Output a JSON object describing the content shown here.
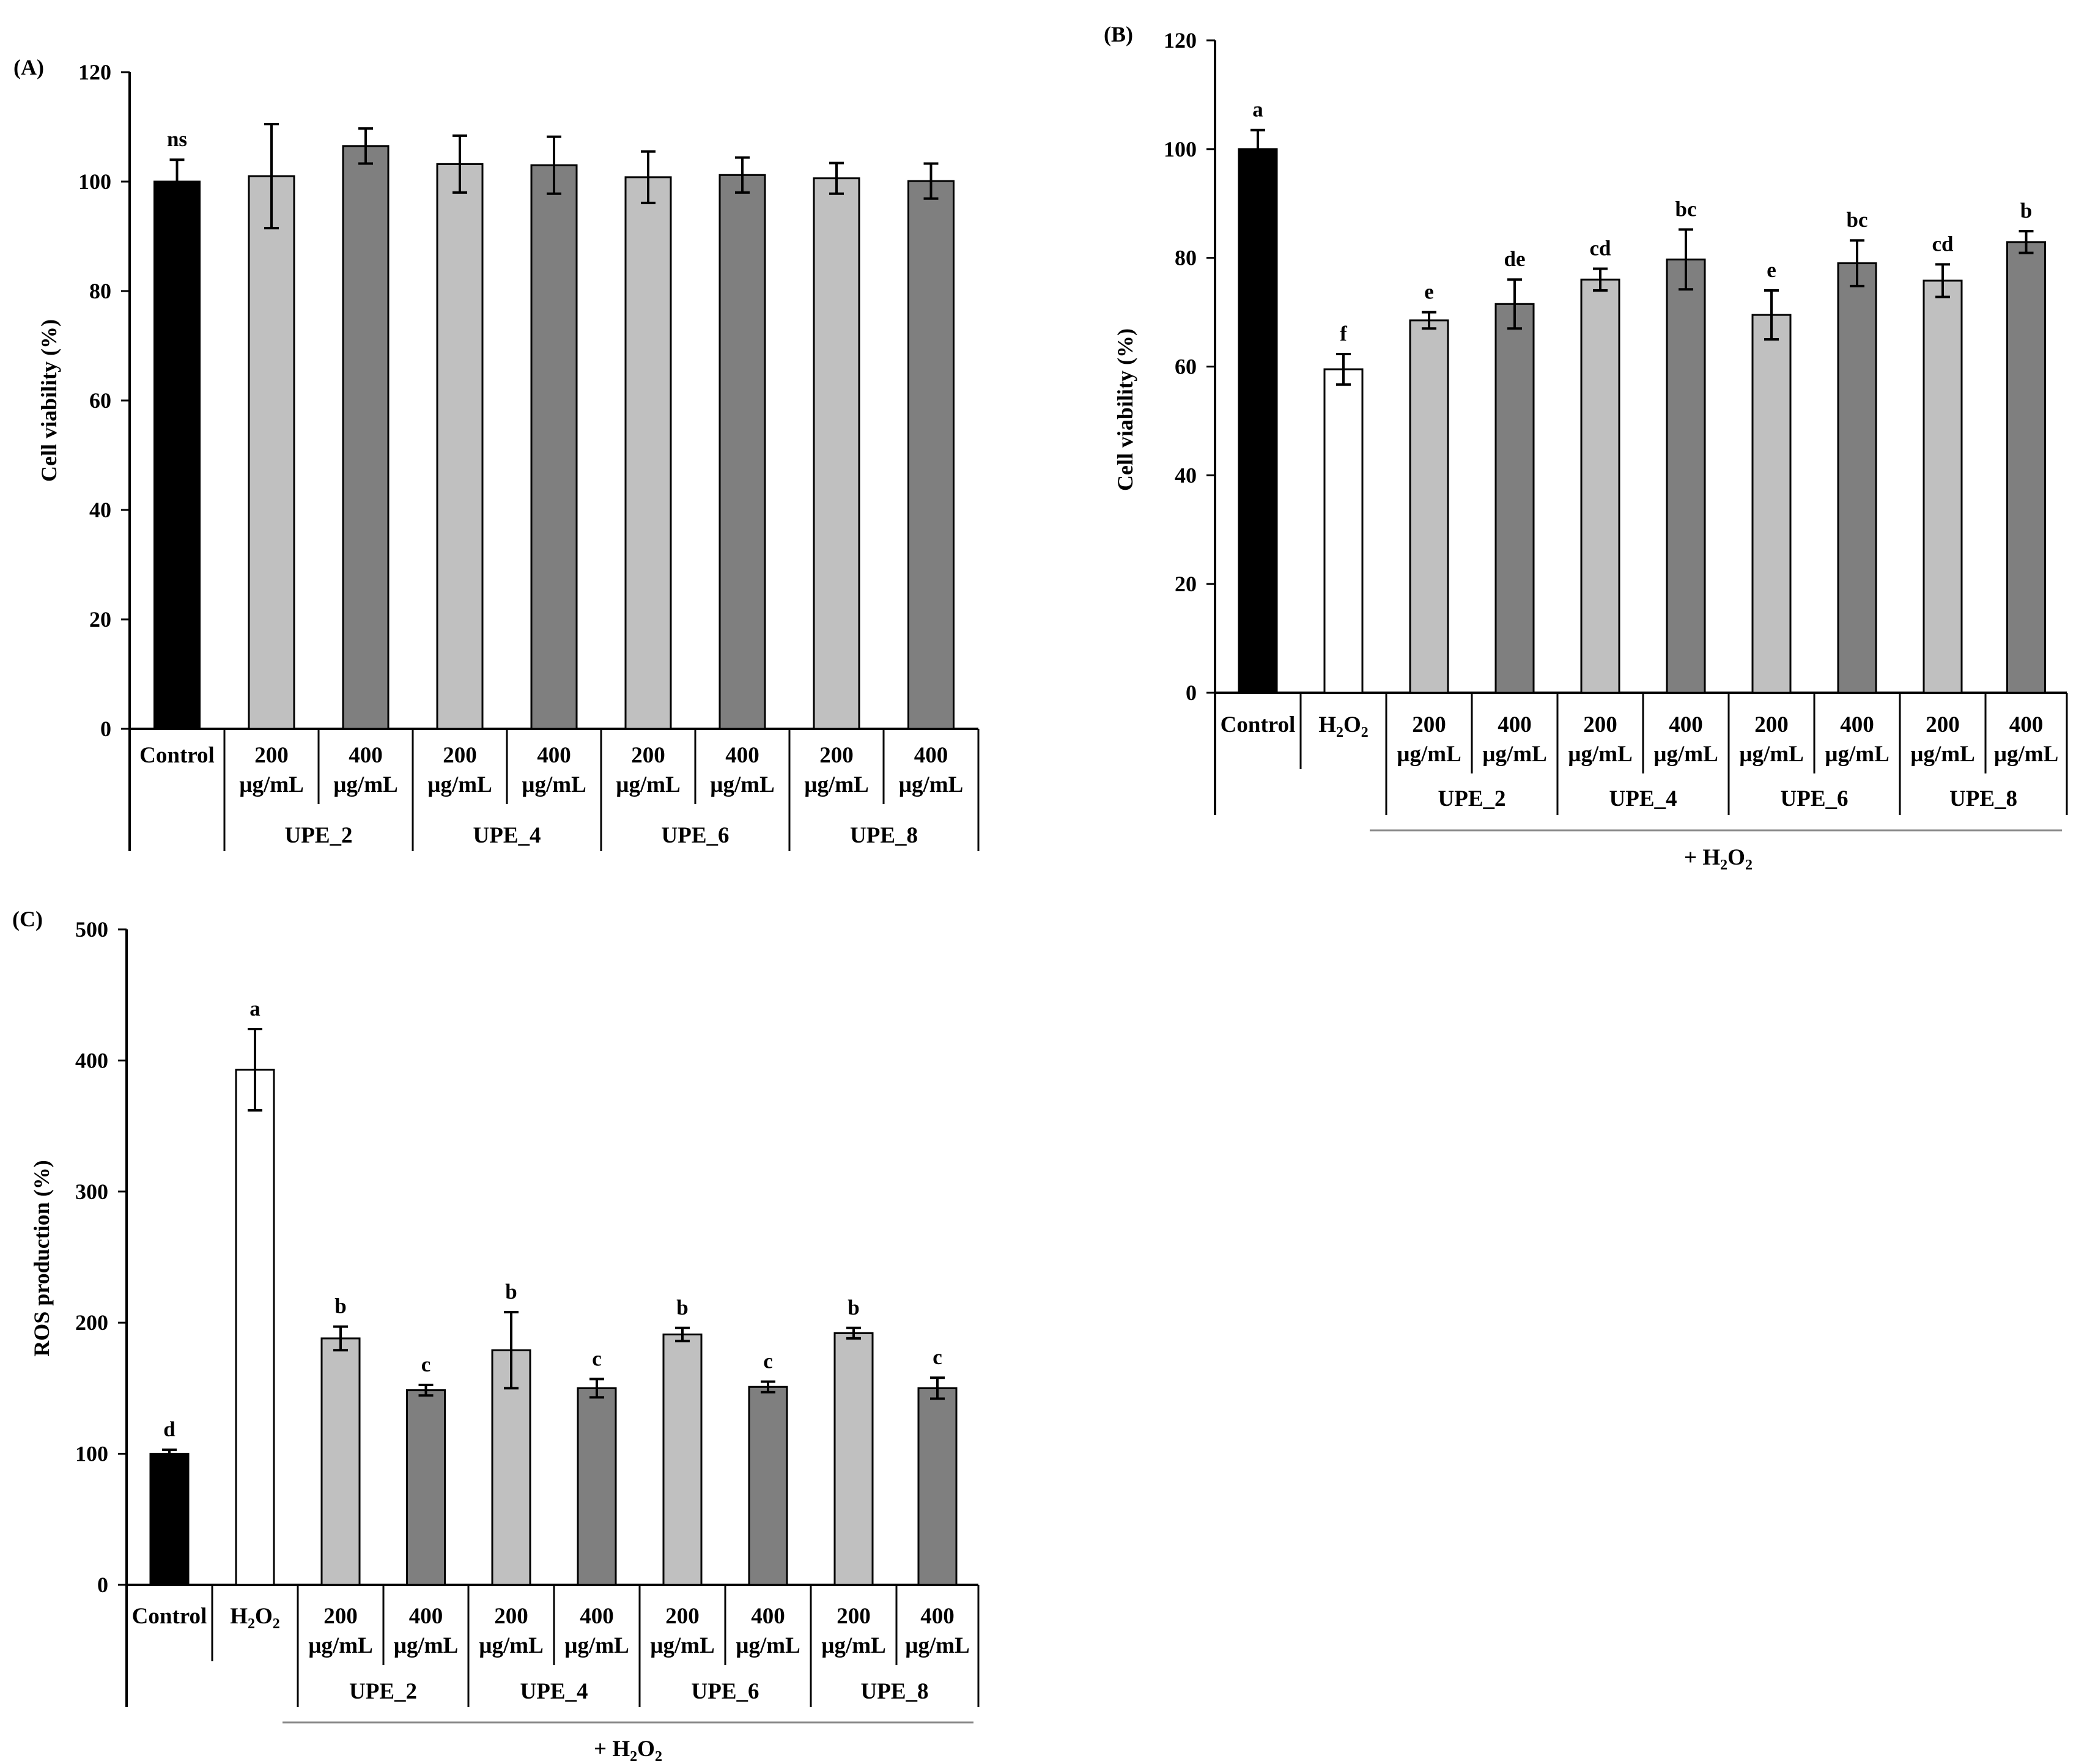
{
  "colors": {
    "control": "#000000",
    "h2o2": "#ffffff",
    "low": "#c0c0c0",
    "high": "#7f7f7f"
  },
  "labels": {
    "control": "Control",
    "h2o2": "H",
    "h2o2_sub1": "2",
    "h2o2_o": "O",
    "h2o2_sub2": "2",
    "dose_line1_200": "200",
    "dose_line1_400": "400",
    "dose_line2": "µg/mL",
    "plus_h2o2_prefix": "+ H",
    "plus_sub1": "2",
    "plus_o": "O",
    "plus_sub2": "2"
  },
  "chart_data": [
    {
      "panel": "(A)",
      "type": "bar",
      "ylabel": "Cell viability  (%)",
      "ylim": [
        0,
        120
      ],
      "yticks": [
        "0",
        "20",
        "40",
        "60",
        "80",
        "100",
        "120"
      ],
      "groups": [
        "UPE_2",
        "UPE_4",
        "UPE_6",
        "UPE_8"
      ],
      "categories": [
        "Control",
        "UPE_2 200 µg/mL",
        "UPE_2 400 µg/mL",
        "UPE_4 200 µg/mL",
        "UPE_4 400 µg/mL",
        "UPE_6 200 µg/mL",
        "UPE_6 400 µg/mL",
        "UPE_8 200 µg/mL",
        "UPE_8 400 µg/mL"
      ],
      "values": [
        100,
        101,
        106.5,
        103.2,
        103,
        100.8,
        101.2,
        100.6,
        100.1
      ],
      "errors": [
        4,
        9.5,
        3.2,
        5.2,
        5.2,
        4.7,
        3.2,
        2.8,
        3.2
      ],
      "letters": [
        "ns",
        "",
        "",
        "",
        "",
        "",
        "",
        "",
        ""
      ]
    },
    {
      "panel": "(B)",
      "type": "bar",
      "ylabel": "Cell viability  (%)",
      "ylim": [
        0,
        120
      ],
      "yticks": [
        "0",
        "20",
        "40",
        "60",
        "80",
        "100",
        "120"
      ],
      "groups": [
        "UPE_2",
        "UPE_4",
        "UPE_6",
        "UPE_8"
      ],
      "treatment": "+ H2O2",
      "categories": [
        "Control",
        "H2O2",
        "UPE_2 200 µg/mL",
        "UPE_2 400 µg/mL",
        "UPE_4 200 µg/mL",
        "UPE_4 400 µg/mL",
        "UPE_6 200 µg/mL",
        "UPE_6 400 µg/mL",
        "UPE_8 200 µg/mL",
        "UPE_8 400 µg/mL"
      ],
      "values": [
        100,
        59.5,
        68.5,
        71.5,
        76,
        79.7,
        69.5,
        79,
        75.8,
        82.9
      ],
      "errors": [
        3.5,
        2.8,
        1.5,
        4.5,
        2,
        5.5,
        4.5,
        4.2,
        3,
        2
      ],
      "letters": [
        "a",
        "f",
        "e",
        "de",
        "cd",
        "bc",
        "e",
        "bc",
        "cd",
        "b"
      ]
    },
    {
      "panel": "(C)",
      "type": "bar",
      "ylabel": "ROS production (%)",
      "ylim": [
        0,
        500
      ],
      "yticks": [
        "0",
        "100",
        "200",
        "300",
        "400",
        "500"
      ],
      "groups": [
        "UPE_2",
        "UPE_4",
        "UPE_6",
        "UPE_8"
      ],
      "treatment": "+ H2O2",
      "categories": [
        "Control",
        "H2O2",
        "UPE_2 200 µg/mL",
        "UPE_2 400 µg/mL",
        "UPE_4 200 µg/mL",
        "UPE_4 400 µg/mL",
        "UPE_6 200 µg/mL",
        "UPE_6 400 µg/mL",
        "UPE_8 200 µg/mL",
        "UPE_8 400 µg/mL"
      ],
      "values": [
        100,
        393,
        188,
        148.5,
        179,
        150,
        191,
        151,
        192,
        150
      ],
      "errors": [
        3,
        31,
        9,
        4,
        29,
        7,
        5,
        4,
        4,
        8
      ],
      "letters": [
        "d",
        "a",
        "b",
        "c",
        "b",
        "c",
        "b",
        "c",
        "b",
        "c"
      ]
    }
  ]
}
